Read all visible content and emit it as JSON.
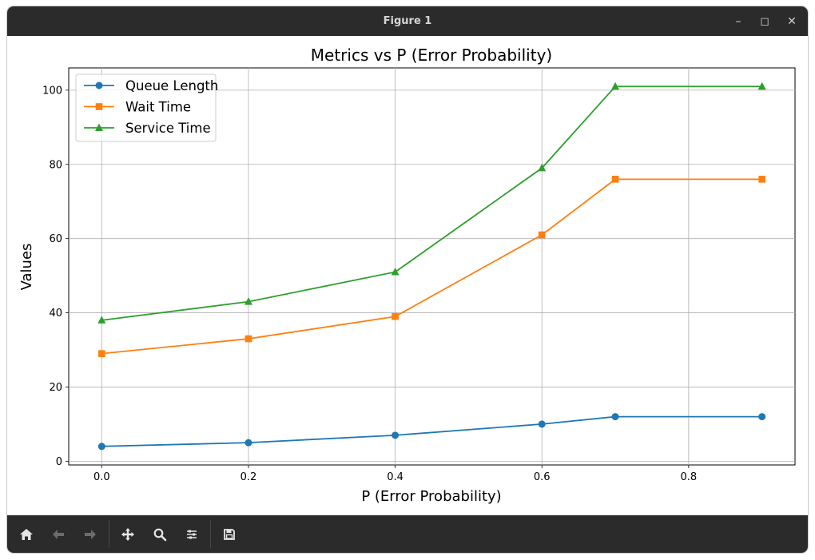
{
  "window": {
    "title": "Figure 1"
  },
  "colors": {
    "series": [
      "#1f77b4",
      "#ff7f0e",
      "#2ca02c"
    ],
    "grid": "#b0b0b0",
    "titlebar": "#2b2b2b"
  },
  "toolbar": {
    "items": [
      {
        "name": "home-icon",
        "enabled": true
      },
      {
        "name": "back-arrow-icon",
        "enabled": false
      },
      {
        "name": "forward-arrow-icon",
        "enabled": false
      },
      {
        "name": "pan-move-icon",
        "enabled": true
      },
      {
        "name": "zoom-magnifier-icon",
        "enabled": true
      },
      {
        "name": "configure-subplots-icon",
        "enabled": true
      },
      {
        "name": "save-disk-icon",
        "enabled": true
      }
    ]
  },
  "chart_data": {
    "type": "line",
    "title": "Metrics vs P (Error Probability)",
    "xlabel": "P (Error Probability)",
    "ylabel": "Values",
    "x": [
      0.0,
      0.2,
      0.4,
      0.6,
      0.7,
      0.9
    ],
    "xlim": [
      -0.045,
      0.945
    ],
    "ylim": [
      -1,
      106
    ],
    "xticks": [
      "0.0",
      "0.2",
      "0.4",
      "0.6",
      "0.8"
    ],
    "xtick_values": [
      0.0,
      0.2,
      0.4,
      0.6,
      0.8
    ],
    "yticks": [
      "0",
      "20",
      "40",
      "60",
      "80",
      "100"
    ],
    "ytick_values": [
      0,
      20,
      40,
      60,
      80,
      100
    ],
    "grid": true,
    "legend_position": "upper left",
    "series": [
      {
        "name": "Queue Length",
        "marker": "circle",
        "values": [
          4,
          5,
          7,
          10,
          12,
          12
        ]
      },
      {
        "name": "Wait Time",
        "marker": "square",
        "values": [
          29,
          33,
          39,
          61,
          76,
          76
        ]
      },
      {
        "name": "Service Time",
        "marker": "triangle",
        "values": [
          38,
          43,
          51,
          79,
          101,
          101
        ]
      }
    ]
  }
}
